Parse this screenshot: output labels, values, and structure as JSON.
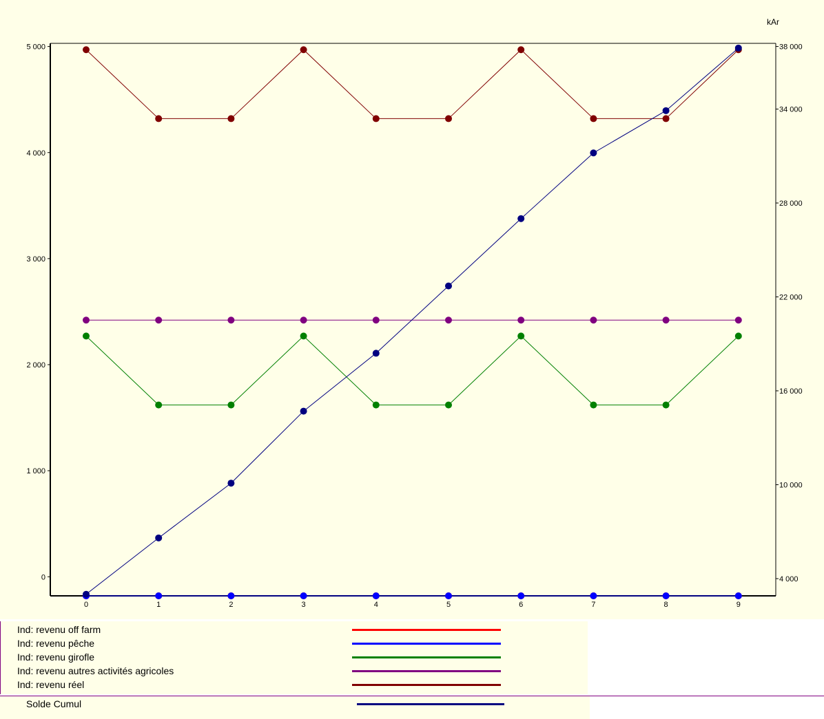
{
  "chart_data": {
    "type": "line",
    "title": "",
    "x": [
      0,
      1,
      2,
      3,
      4,
      5,
      6,
      7,
      8,
      9
    ],
    "x_tick_labels": [
      "0",
      "1",
      "2",
      "3",
      "4",
      "5",
      "6",
      "7",
      "8",
      "9"
    ],
    "y_left": {
      "ticks": [
        0,
        1000,
        2000,
        3000,
        4000,
        5000
      ],
      "tick_labels": [
        "0",
        "1 000",
        "2 000",
        "3 000",
        "4 000",
        "5 000"
      ],
      "range": [
        -180,
        5030
      ]
    },
    "y_right": {
      "label": "kAr",
      "ticks": [
        4000,
        10000,
        16000,
        22000,
        28000,
        34000,
        38000
      ],
      "tick_labels": [
        "4 000",
        "10 000",
        "16 000",
        "22 000",
        "28 000",
        "34 000",
        "38 000"
      ],
      "range": [
        2900,
        38200
      ]
    },
    "grid": false,
    "legend_position": "bottom",
    "series": [
      {
        "name": "Ind: revenu off farm",
        "axis": "left",
        "color": "#ff0000",
        "values": [
          -190,
          -190,
          -190,
          -190,
          -190,
          -190,
          -190,
          -190,
          -190,
          -190
        ]
      },
      {
        "name": "Ind: revenu pêche",
        "axis": "left",
        "color": "#0000ff",
        "values": [
          -190,
          -190,
          -190,
          -190,
          -190,
          -190,
          -190,
          -190,
          -190,
          -190
        ]
      },
      {
        "name": "Ind: revenu girofle",
        "axis": "left",
        "color": "#008000",
        "values": [
          2270,
          1620,
          1620,
          2270,
          1620,
          1620,
          2270,
          1620,
          1620,
          2270
        ]
      },
      {
        "name": "Ind: revenu autres activités agricoles",
        "axis": "left",
        "color": "#800080",
        "values": [
          2420,
          2420,
          2420,
          2420,
          2420,
          2420,
          2420,
          2420,
          2420,
          2420
        ]
      },
      {
        "name": "Ind: revenu réel",
        "axis": "left",
        "color": "#800000",
        "values": [
          4970,
          4320,
          4320,
          4970,
          4320,
          4320,
          4970,
          4320,
          4320,
          4970
        ]
      },
      {
        "name": "Solde Cumul",
        "axis": "right",
        "color": "#000080",
        "values": [
          3000,
          6600,
          10100,
          14700,
          18400,
          22700,
          27000,
          31200,
          33900,
          37900
        ]
      }
    ]
  }
}
